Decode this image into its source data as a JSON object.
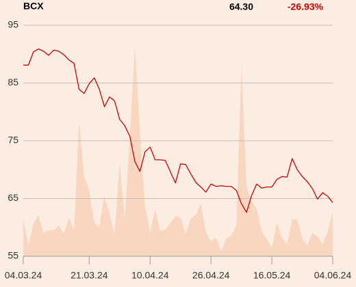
{
  "chart_data": {
    "type": "line",
    "title": "BCX",
    "price": "64.30",
    "change": "-26.93%",
    "categories": [
      "04.03.24",
      null,
      null,
      null,
      null,
      null,
      null,
      null,
      null,
      null,
      null,
      null,
      null,
      "21.03.24",
      null,
      null,
      null,
      null,
      null,
      null,
      null,
      null,
      null,
      null,
      null,
      "10.04.24",
      null,
      null,
      null,
      null,
      null,
      null,
      null,
      null,
      null,
      null,
      null,
      "26.04.24",
      null,
      null,
      null,
      null,
      null,
      null,
      null,
      null,
      null,
      null,
      null,
      "16.05.24",
      null,
      null,
      null,
      null,
      null,
      null,
      null,
      null,
      null,
      null,
      null,
      "04.06.24"
    ],
    "series": [
      {
        "color": "#cc0000",
        "values": [
          88.1,
          88.1,
          90.4,
          90.9,
          90.5,
          89.8,
          90.7,
          90.5,
          89.9,
          89.0,
          88.4,
          83.9,
          83.2,
          84.9,
          85.9,
          83.9,
          80.9,
          82.6,
          81.9,
          78.7,
          77.6,
          75.8,
          71.4,
          69.7,
          73.1,
          73.9,
          71.7,
          71.7,
          71.6,
          69.6,
          67.7,
          71.0,
          70.9,
          69.3,
          67.8,
          67.0,
          66.1,
          67.5,
          67.1,
          67.2,
          67.1,
          67.1,
          66.4,
          64.1,
          62.6,
          65.5,
          67.5,
          66.8,
          67.0,
          67.0,
          68.3,
          68.8,
          68.7,
          71.9,
          70.0,
          68.8,
          67.9,
          66.7,
          64.9,
          66.0,
          65.4,
          64.3
        ]
      }
    ],
    "volume": {
      "color": "#f9d6bf",
      "values": [
        61.5,
        57.0,
        60.6,
        62.1,
        59.0,
        59.5,
        59.5,
        60.3,
        58.9,
        61.7,
        59.4,
        78.3,
        68.8,
        66.5,
        60.7,
        60.1,
        65.4,
        62.3,
        58.9,
        71.3,
        61.3,
        75.6,
        91.4,
        76.5,
        63.6,
        59.1,
        63.2,
        59.3,
        59.6,
        60.8,
        61.9,
        61.7,
        58.8,
        61.5,
        62.2,
        64.1,
        59.1,
        57.6,
        58.3,
        55.8,
        58.1,
        58.6,
        60.3,
        87.9,
        67.2,
        64.5,
        63.3,
        59.4,
        58.0,
        56.5,
        60.8,
        58.2,
        57.1,
        61.4,
        61.3,
        58.1,
        56.8,
        59.1,
        58.4,
        57.0,
        59.3,
        62.7
      ]
    },
    "ylim": [
      55,
      95
    ],
    "yticks": [
      55,
      65,
      75,
      85,
      95
    ],
    "grid": true
  }
}
